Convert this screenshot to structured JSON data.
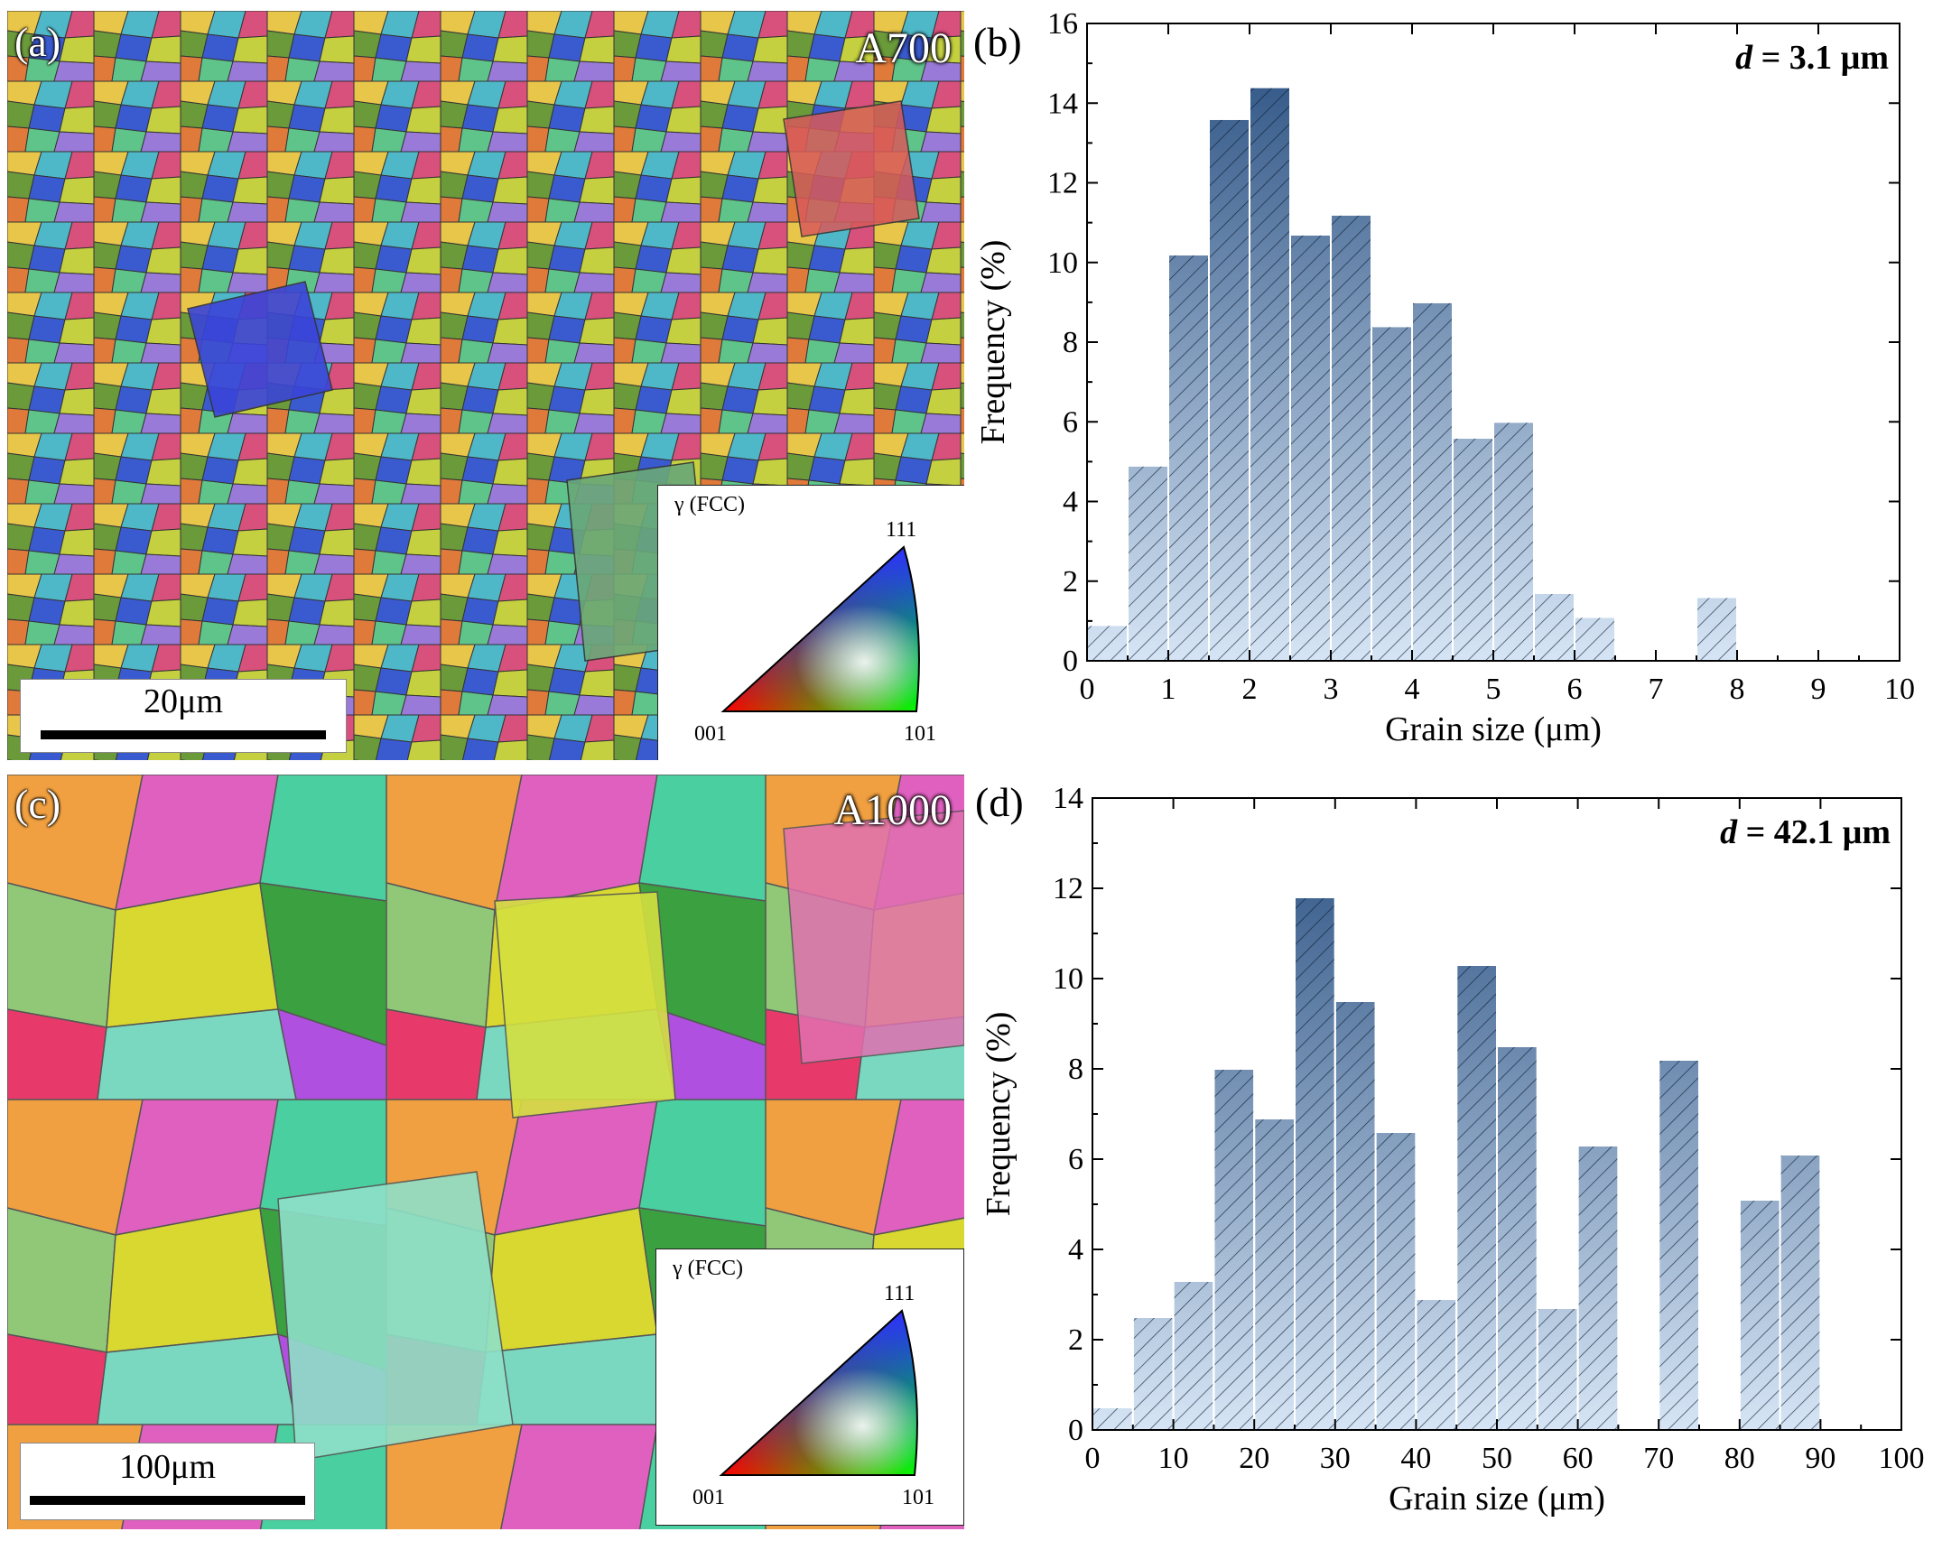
{
  "panels": {
    "a": {
      "label": "(a)",
      "sample": "A700",
      "scale_text": "20μm",
      "ipf": {
        "title": "γ (FCC)",
        "v111": "111",
        "v001": "001",
        "v101": "101"
      }
    },
    "b": {
      "label": "(b)"
    },
    "c": {
      "label": "(c)",
      "sample": "A1000",
      "scale_text": "100μm",
      "ipf": {
        "title": "γ (FCC)",
        "v111": "111",
        "v001": "001",
        "v101": "101"
      }
    },
    "d": {
      "label": "(d)"
    }
  },
  "colors": {
    "bar_dark": "#264d7f",
    "bar_light": "#d6e5f5",
    "bar_edge": "#ffffff"
  },
  "chart_data": [
    {
      "type": "bar",
      "title": "",
      "annotation_var": "d",
      "annotation_value": " = 3.1 μm",
      "xlabel": "Grain size (μm)",
      "ylabel": "Frequency (%)",
      "xlim": [
        0,
        10
      ],
      "ylim": [
        0,
        16
      ],
      "xticks": [
        "0",
        "1",
        "2",
        "3",
        "4",
        "5",
        "6",
        "7",
        "8",
        "9",
        "10"
      ],
      "yticks": [
        "0",
        "2",
        "4",
        "6",
        "8",
        "10",
        "12",
        "14",
        "16"
      ],
      "bin_width": 0.5,
      "bin_starts": [
        0,
        0.5,
        1,
        1.5,
        2,
        2.5,
        3,
        3.5,
        4,
        4.5,
        5,
        5.5,
        6,
        6.5,
        7,
        7.5,
        8,
        8.5,
        9,
        9.5
      ],
      "values": [
        0.9,
        4.9,
        10.2,
        13.6,
        14.4,
        10.7,
        11.2,
        8.4,
        9.0,
        5.6,
        6.0,
        1.7,
        1.1,
        0,
        0,
        1.6,
        0,
        0,
        0,
        0
      ]
    },
    {
      "type": "bar",
      "title": "",
      "annotation_var": "d",
      "annotation_value": " = 42.1 μm",
      "xlabel": "Grain size (μm)",
      "ylabel": "Frequency (%)",
      "xlim": [
        0,
        100
      ],
      "ylim": [
        0,
        14
      ],
      "xticks": [
        "0",
        "10",
        "20",
        "30",
        "40",
        "50",
        "60",
        "70",
        "80",
        "90",
        "100"
      ],
      "yticks": [
        "0",
        "2",
        "4",
        "6",
        "8",
        "10",
        "12",
        "14"
      ],
      "bin_width": 5,
      "bin_starts": [
        0,
        5,
        10,
        15,
        20,
        25,
        30,
        35,
        40,
        45,
        50,
        55,
        60,
        65,
        70,
        75,
        80,
        85,
        90,
        95
      ],
      "values": [
        0.5,
        2.5,
        3.3,
        8.0,
        6.9,
        11.8,
        9.5,
        6.6,
        2.9,
        10.3,
        8.5,
        2.7,
        6.3,
        0,
        8.2,
        0,
        5.1,
        6.1,
        0,
        0
      ]
    }
  ]
}
